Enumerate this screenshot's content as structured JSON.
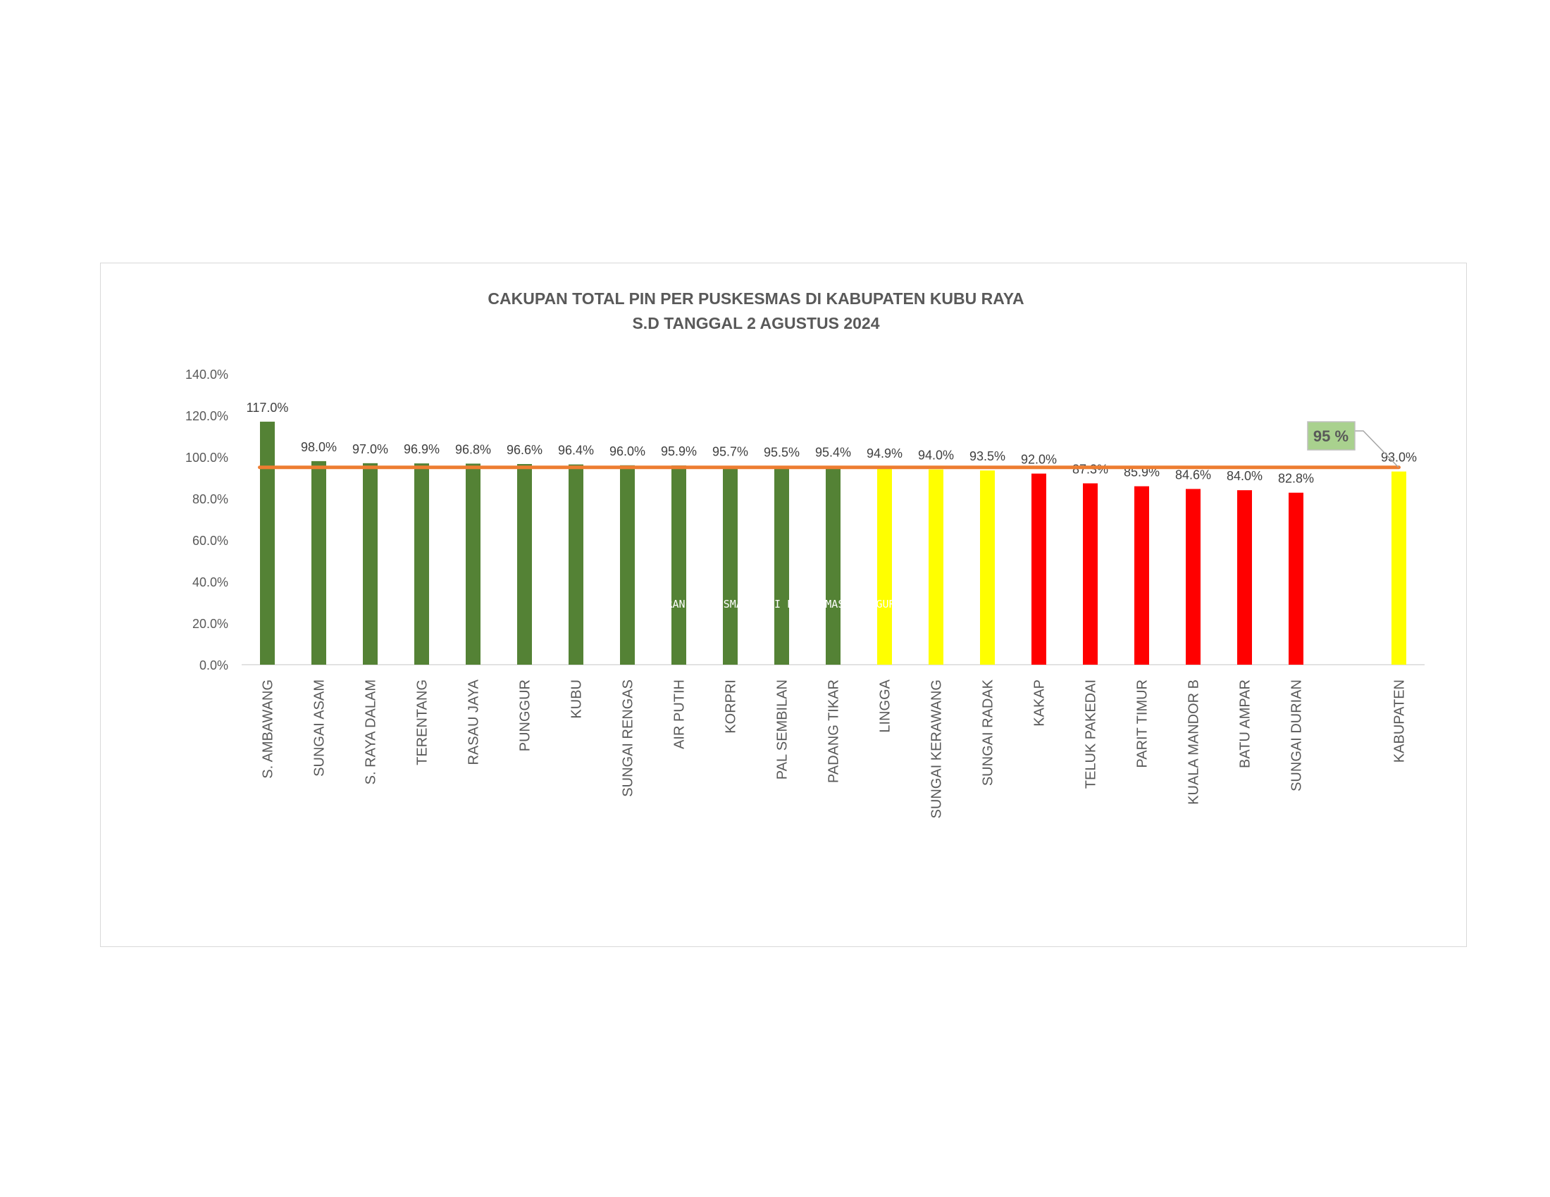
{
  "chart_data": {
    "type": "bar",
    "title": [
      "CAKUPAN TOTAL PIN PER PUSKESMAS DI KABUPATEN KUBU RAYA",
      "S.D TANGGAL 2 AGUSTUS 2024"
    ],
    "xlabel": "",
    "ylabel": "",
    "ylim": [
      0,
      140
    ],
    "yticks": [
      "0.0%",
      "20.0%",
      "40.0%",
      "60.0%",
      "80.0%",
      "100.0%",
      "120.0%",
      "140.0%"
    ],
    "grid": false,
    "categories": [
      "S. AMBAWANG",
      "SUNGAI ASAM",
      "S. RAYA DALAM",
      "TERENTANG",
      "RASAU JAYA",
      "PUNGGUR",
      "KUBU",
      "SUNGAI RENGAS",
      "AIR PUTIH",
      "KORPRI",
      "PAL SEMBILAN",
      "PADANG TIKAR",
      "LINGGA",
      "SUNGAI KERAWANG",
      "SUNGAI RADAK",
      "KAKAP",
      "TELUK PAKEDAI",
      "PARIT TIMUR",
      "KUALA MANDOR B",
      "BATU AMPAR",
      "SUNGAI DURIAN",
      "",
      "KABUPATEN"
    ],
    "values": [
      117.0,
      98.0,
      97.0,
      96.9,
      96.8,
      96.6,
      96.4,
      96.0,
      95.9,
      95.7,
      95.5,
      95.4,
      94.9,
      94.0,
      93.5,
      92.0,
      87.3,
      85.9,
      84.6,
      84.0,
      82.8,
      null,
      93.0
    ],
    "labels": [
      "117.0%",
      "98.0%",
      "97.0%",
      "96.9%",
      "96.8%",
      "96.6%",
      "96.4%",
      "96.0%",
      "95.9%",
      "95.7%",
      "95.5%",
      "95.4%",
      "94.9%",
      "94.0%",
      "93.5%",
      "92.0%",
      "87.3%",
      "85.9%",
      "84.6%",
      "84.0%",
      "82.8%",
      "",
      "93.0%"
    ],
    "colors": [
      "#548235",
      "#548235",
      "#548235",
      "#548235",
      "#548235",
      "#548235",
      "#548235",
      "#548235",
      "#548235",
      "#548235",
      "#548235",
      "#548235",
      "#FFFF00",
      "#FFFF00",
      "#FFFF00",
      "#FF0000",
      "#FF0000",
      "#FF0000",
      "#FF0000",
      "#FF0000",
      "#FF0000",
      "",
      "#FFFF00"
    ],
    "target": {
      "value": 95,
      "label": "95 %",
      "color": "#ED7D31",
      "box_color": "#A9D18E"
    },
    "overlay_text": "LAPORAN PUSKESMAS DARI PUSKESMAS PUNGGUR"
  }
}
